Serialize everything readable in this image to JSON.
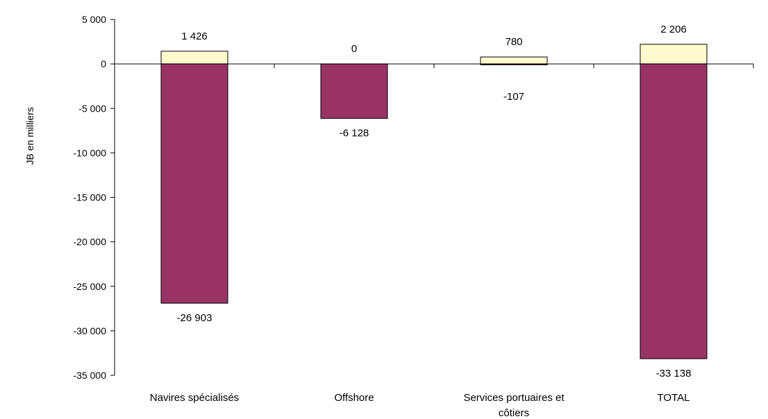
{
  "chart_data": {
    "type": "bar",
    "ylabel": "JB en milliers",
    "ylim": [
      -35000,
      5000
    ],
    "yticks": [
      5000,
      0,
      -5000,
      -10000,
      -15000,
      -20000,
      -25000,
      -30000,
      -35000
    ],
    "ytick_labels": [
      "5 000",
      "0",
      "-5 000",
      "-10 000",
      "-15 000",
      "-20 000",
      "-25 000",
      "-30 000",
      "-35 000"
    ],
    "grid": false,
    "categories": [
      {
        "lines": [
          "Navires spécialisés"
        ]
      },
      {
        "lines": [
          "Offshore"
        ]
      },
      {
        "lines": [
          "Services portuaires et",
          "côtiers"
        ]
      },
      {
        "lines": [
          "TOTAL"
        ]
      }
    ],
    "series": [
      {
        "color": "#fffacd",
        "values": [
          1426,
          0,
          780,
          2206
        ],
        "labels": [
          "1 426",
          "0",
          "780",
          "2 206"
        ]
      },
      {
        "color": "#993366",
        "values": [
          -26903,
          -6128,
          -107,
          -33138
        ],
        "labels": [
          "-26 903",
          "-6 128",
          "-107",
          "-33 138"
        ]
      }
    ]
  }
}
